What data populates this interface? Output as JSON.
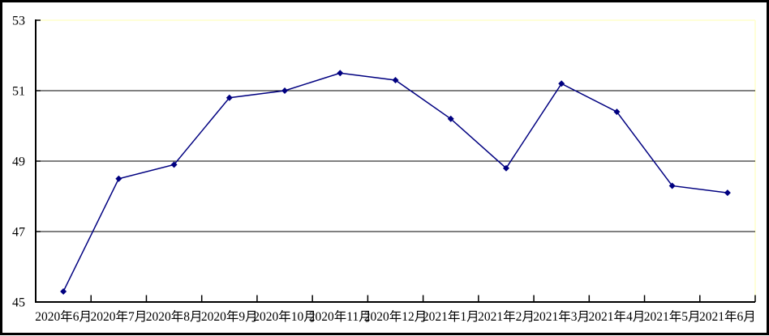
{
  "chart_data": {
    "type": "line",
    "title": "",
    "xlabel": "",
    "ylabel": "",
    "categories": [
      "2020年6月",
      "2020年7月",
      "2020年8月",
      "2020年9月",
      "2020年10月",
      "2020年11月",
      "2020年12月",
      "2021年1月",
      "2021年2月",
      "2021年3月",
      "2021年4月",
      "2021年5月",
      "2021年6月"
    ],
    "values": [
      45.3,
      48.5,
      48.9,
      50.8,
      51.0,
      51.5,
      51.3,
      50.2,
      48.8,
      51.2,
      50.4,
      48.3,
      48.1
    ],
    "ylim": [
      45,
      53
    ],
    "yticks": [
      45,
      47,
      49,
      51,
      53
    ],
    "grid": "horizontal",
    "legend": "none",
    "marker": "diamond",
    "colors": {
      "series_line": "#000080",
      "marker": "#000080",
      "gridline": "#000000",
      "axis": "#000000",
      "plot_area_border": "#ffffcc",
      "background": "#ffffff",
      "outer_border": "#000000"
    }
  }
}
